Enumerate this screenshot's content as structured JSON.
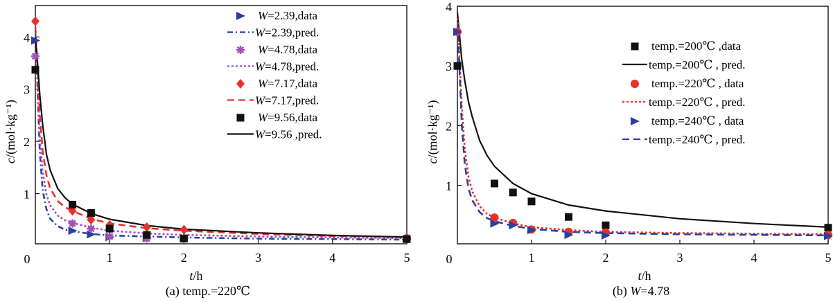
{
  "chart_data": [
    {
      "type": "line",
      "panel": "a",
      "caption": "(a) temp.=220℃",
      "xlabel_italic": "t",
      "xlabel_unit": "/h",
      "ylabel_italic": "c",
      "ylabel_unit": "/(mol·kg⁻¹)",
      "xlim": [
        0,
        5
      ],
      "ylim": [
        0.04,
        4.6
      ],
      "xticks": [
        1,
        2,
        3,
        4,
        5
      ],
      "yticks": [
        1,
        2,
        3,
        4
      ],
      "origin_label": "0",
      "grid": false,
      "legend_position": "top-right",
      "series": [
        {
          "name": "W=2.39",
          "data_label": "W=2.39,data",
          "pred_label": "W=2.39,pred.",
          "color": "#2b3f9e",
          "marker": "triangle-right",
          "line_style": "dash-dot",
          "data": {
            "t": [
              0,
              0.5,
              0.75,
              1,
              1.5,
              2,
              5
            ],
            "c": [
              3.93,
              0.29,
              0.22,
              0.17,
              0.15,
              0.14,
              0.13
            ]
          },
          "pred": {
            "t": [
              0,
              0.03,
              0.06,
              0.1,
              0.15,
              0.2,
              0.3,
              0.4,
              0.5,
              0.75,
              1,
              1.5,
              2,
              3,
              4,
              5
            ],
            "c": [
              4.1,
              3.0,
              1.8,
              1.05,
              0.7,
              0.52,
              0.38,
              0.31,
              0.28,
              0.23,
              0.2,
              0.18,
              0.16,
              0.14,
              0.13,
              0.12
            ]
          }
        },
        {
          "name": "W=4.78",
          "data_label": "W=4.78,data",
          "pred_label": "W=4.78,pred.",
          "color": "#a050b8",
          "marker": "asterisk",
          "line_style": "dotted",
          "data": {
            "t": [
              0,
              0.5,
              0.75,
              1,
              1.5,
              2,
              5
            ],
            "c": [
              3.63,
              0.43,
              0.33,
              0.18,
              0.14,
              0.16,
              0.15
            ]
          },
          "pred": {
            "t": [
              0,
              0.03,
              0.06,
              0.1,
              0.15,
              0.2,
              0.3,
              0.4,
              0.5,
              0.75,
              1,
              1.5,
              2,
              3,
              4,
              5
            ],
            "c": [
              4.1,
              3.2,
              2.1,
              1.4,
              0.98,
              0.78,
              0.58,
              0.49,
              0.44,
              0.35,
              0.29,
              0.24,
              0.21,
              0.18,
              0.16,
              0.15
            ]
          }
        },
        {
          "name": "W=7.17",
          "data_label": "W=7.17,data",
          "pred_label": "W=7.17,pred.",
          "color": "#e8302a",
          "marker": "diamond",
          "line_style": "dashed",
          "data": {
            "t": [
              0,
              0.5,
              0.75,
              1,
              1.5,
              2,
              5
            ],
            "c": [
              4.3,
              0.67,
              0.5,
              0.4,
              0.36,
              0.31,
              0.16
            ]
          },
          "pred": {
            "t": [
              0,
              0.03,
              0.06,
              0.1,
              0.15,
              0.2,
              0.3,
              0.4,
              0.5,
              0.75,
              1,
              1.5,
              2,
              3,
              4,
              5
            ],
            "c": [
              4.2,
              3.4,
              2.5,
              1.8,
              1.35,
              1.1,
              0.86,
              0.74,
              0.67,
              0.52,
              0.43,
              0.34,
              0.29,
              0.23,
              0.19,
              0.17
            ]
          }
        },
        {
          "name": "W=9.56",
          "data_label": "W=9.56,data",
          "pred_label": "W=9.56 ,pred.",
          "color": "#111111",
          "marker": "square",
          "line_style": "solid",
          "data": {
            "t": [
              0,
              0.5,
              0.75,
              1,
              1.5,
              2,
              5
            ],
            "c": [
              3.37,
              0.79,
              0.63,
              0.33,
              0.21,
              0.14,
              0.13
            ]
          },
          "pred": {
            "t": [
              0,
              0.03,
              0.06,
              0.1,
              0.15,
              0.2,
              0.3,
              0.4,
              0.5,
              0.75,
              1,
              1.5,
              2,
              3,
              4,
              5
            ],
            "c": [
              4.0,
              3.5,
              2.9,
              2.3,
              1.75,
              1.45,
              1.1,
              0.92,
              0.8,
              0.62,
              0.51,
              0.39,
              0.32,
              0.25,
              0.2,
              0.17
            ]
          }
        }
      ]
    },
    {
      "type": "line",
      "panel": "b",
      "caption": "(b) W=4.78",
      "caption_prefix": "(b) ",
      "caption_italic": "W",
      "caption_suffix": "=4.78",
      "xlabel_italic": "t",
      "xlabel_unit": "/h",
      "ylabel_italic": "c",
      "ylabel_unit": "/(mol·kg⁻¹)",
      "xlim": [
        0,
        5
      ],
      "ylim": [
        0.02,
        4.0
      ],
      "xticks": [
        1,
        2,
        3,
        4,
        5
      ],
      "yticks": [
        1,
        2,
        3,
        4
      ],
      "origin_label": "0",
      "grid": false,
      "legend_position": "top-right",
      "series": [
        {
          "name": "temp.=200℃",
          "data_label": "temp.=200℃ ,data",
          "pred_label": "temp.=200℃ , pred.",
          "color": "#111111",
          "marker": "square",
          "line_style": "solid",
          "data": {
            "t": [
              0,
              0.5,
              0.75,
              1,
              1.5,
              2,
              5
            ],
            "c": [
              3.0,
              1.03,
              0.88,
              0.73,
              0.47,
              0.33,
              0.29
            ]
          },
          "pred": {
            "t": [
              0,
              0.03,
              0.06,
              0.1,
              0.15,
              0.2,
              0.3,
              0.4,
              0.5,
              0.75,
              1,
              1.5,
              2,
              3,
              4,
              5
            ],
            "c": [
              3.9,
              3.5,
              3.1,
              2.75,
              2.4,
              2.15,
              1.75,
              1.5,
              1.32,
              1.03,
              0.86,
              0.67,
              0.57,
              0.44,
              0.36,
              0.3
            ]
          }
        },
        {
          "name": "temp.=220℃",
          "data_label": "temp.=220℃ , data",
          "pred_label": "temp.=220℃ , pred.",
          "color": "#e8302a",
          "marker": "circle",
          "line_style": "dotted",
          "data": {
            "t": [
              0,
              0.5,
              0.75,
              1,
              1.5,
              2,
              5
            ],
            "c": [
              3.57,
              0.46,
              0.37,
              0.26,
              0.22,
              0.21,
              0.17
            ]
          },
          "pred": {
            "t": [
              0,
              0.03,
              0.06,
              0.1,
              0.15,
              0.2,
              0.3,
              0.4,
              0.5,
              0.75,
              1,
              1.5,
              2,
              3,
              4,
              5
            ],
            "c": [
              3.8,
              3.1,
              2.3,
              1.6,
              1.15,
              0.9,
              0.65,
              0.52,
              0.46,
              0.36,
              0.3,
              0.25,
              0.22,
              0.2,
              0.19,
              0.18
            ]
          }
        },
        {
          "name": "temp.=240℃",
          "data_label": "temp.=240℃ , data",
          "pred_label": "temp.=240℃ , pred.",
          "color": "#2b3f9e",
          "marker": "triangle-right",
          "line_style": "dashed",
          "data": {
            "t": [
              0,
              0.5,
              0.75,
              1,
              1.5,
              2,
              5
            ],
            "c": [
              3.57,
              0.36,
              0.33,
              0.25,
              0.17,
              0.16,
              0.15
            ]
          },
          "pred": {
            "t": [
              0,
              0.03,
              0.06,
              0.1,
              0.15,
              0.2,
              0.3,
              0.4,
              0.5,
              0.75,
              1,
              1.5,
              2,
              3,
              4,
              5
            ],
            "c": [
              3.7,
              2.9,
              2.0,
              1.35,
              0.95,
              0.75,
              0.55,
              0.45,
              0.4,
              0.32,
              0.27,
              0.22,
              0.2,
              0.18,
              0.17,
              0.16
            ]
          }
        }
      ]
    }
  ]
}
